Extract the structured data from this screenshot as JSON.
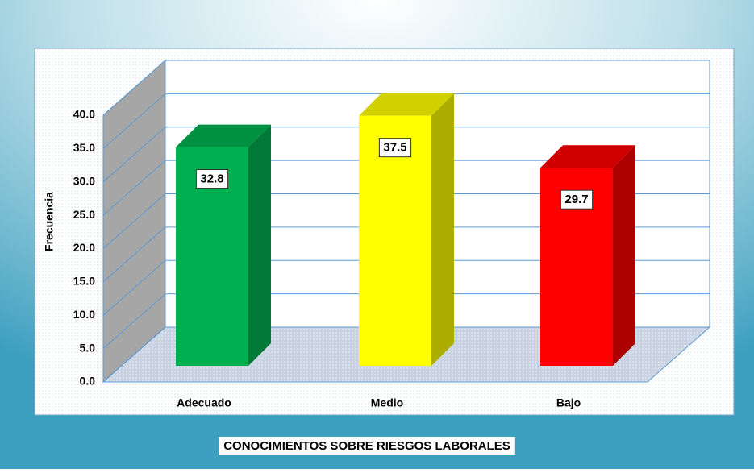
{
  "chart_data": {
    "type": "bar3d",
    "title": "CONOCIMIENTOS SOBRE RIESGOS LABORALES",
    "y_label": "Frecuencia",
    "categories": [
      "Adecuado",
      "Medio",
      "Bajo"
    ],
    "values": [
      32.8,
      37.5,
      29.7
    ],
    "colors": [
      "#00b050",
      "#ffff00",
      "#ff0000"
    ],
    "ylim": [
      0,
      40
    ],
    "yticks": [
      {
        "value": 0,
        "label": "0.0"
      },
      {
        "value": 5,
        "label": "5.0"
      },
      {
        "value": 10,
        "label": "10.0"
      },
      {
        "value": 15,
        "label": "15.0"
      },
      {
        "value": 20,
        "label": "20.0"
      },
      {
        "value": 25,
        "label": "25.0"
      },
      {
        "value": 30,
        "label": "30.0"
      },
      {
        "value": 35,
        "label": "35.0"
      },
      {
        "value": 40,
        "label": "40.0"
      }
    ],
    "grid": true
  }
}
